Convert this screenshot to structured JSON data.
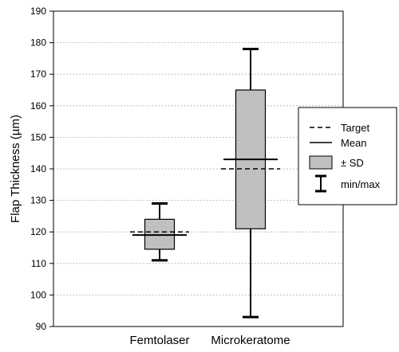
{
  "chart_data": {
    "type": "box",
    "ylabel": "Flap Thickness (µm)",
    "ylim": [
      90,
      190
    ],
    "yticks": [
      90,
      100,
      110,
      120,
      130,
      140,
      150,
      160,
      170,
      180,
      190
    ],
    "grid": true,
    "categories": [
      "Femtolaser",
      "Microkeratome"
    ],
    "boxes": [
      {
        "category": "Femtolaser",
        "min": 111,
        "max": 129,
        "sd_low": 114.5,
        "sd_high": 124,
        "mean": 119,
        "target": 120
      },
      {
        "category": "Microkeratome",
        "min": 93,
        "max": 178,
        "sd_low": 121,
        "sd_high": 165,
        "mean": 143,
        "target": 140
      }
    ],
    "legend": {
      "position": "right",
      "entries": [
        {
          "symbol": "dashed-line",
          "label": "Target"
        },
        {
          "symbol": "solid-line",
          "label": "Mean"
        },
        {
          "symbol": "gray-box",
          "label": "± SD"
        },
        {
          "symbol": "error-bar",
          "label": "min/max"
        }
      ]
    },
    "colors": {
      "box_fill": "#c0c0c0",
      "grid": "#b0b0b0",
      "axis": "#000000"
    }
  }
}
